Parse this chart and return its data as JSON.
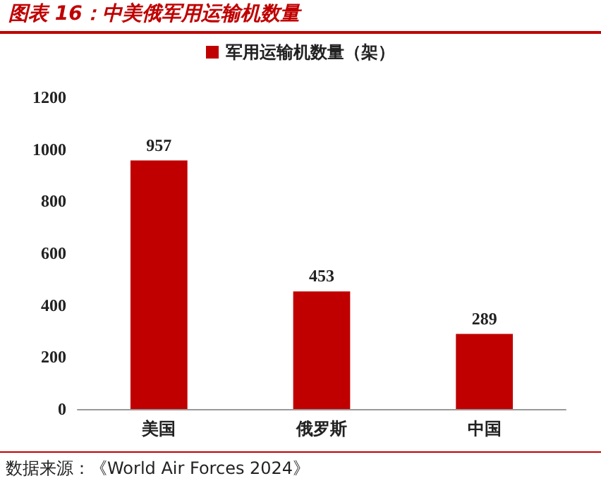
{
  "chart_data": {
    "type": "bar",
    "title": "图表 16：中美俄军用运输机数量",
    "categories": [
      "美国",
      "俄罗斯",
      "中国"
    ],
    "series": [
      {
        "name": "军用运输机数量（架）",
        "color": "#c00000",
        "values": [
          957,
          453,
          289
        ]
      }
    ],
    "ylim": [
      0,
      1200
    ],
    "yticks": [
      0,
      200,
      400,
      600,
      800,
      1000,
      1200
    ],
    "grid": false,
    "legend": "top",
    "data_labels": true,
    "annotations": [
      "数据来源：《World Air Forces 2024》"
    ]
  }
}
